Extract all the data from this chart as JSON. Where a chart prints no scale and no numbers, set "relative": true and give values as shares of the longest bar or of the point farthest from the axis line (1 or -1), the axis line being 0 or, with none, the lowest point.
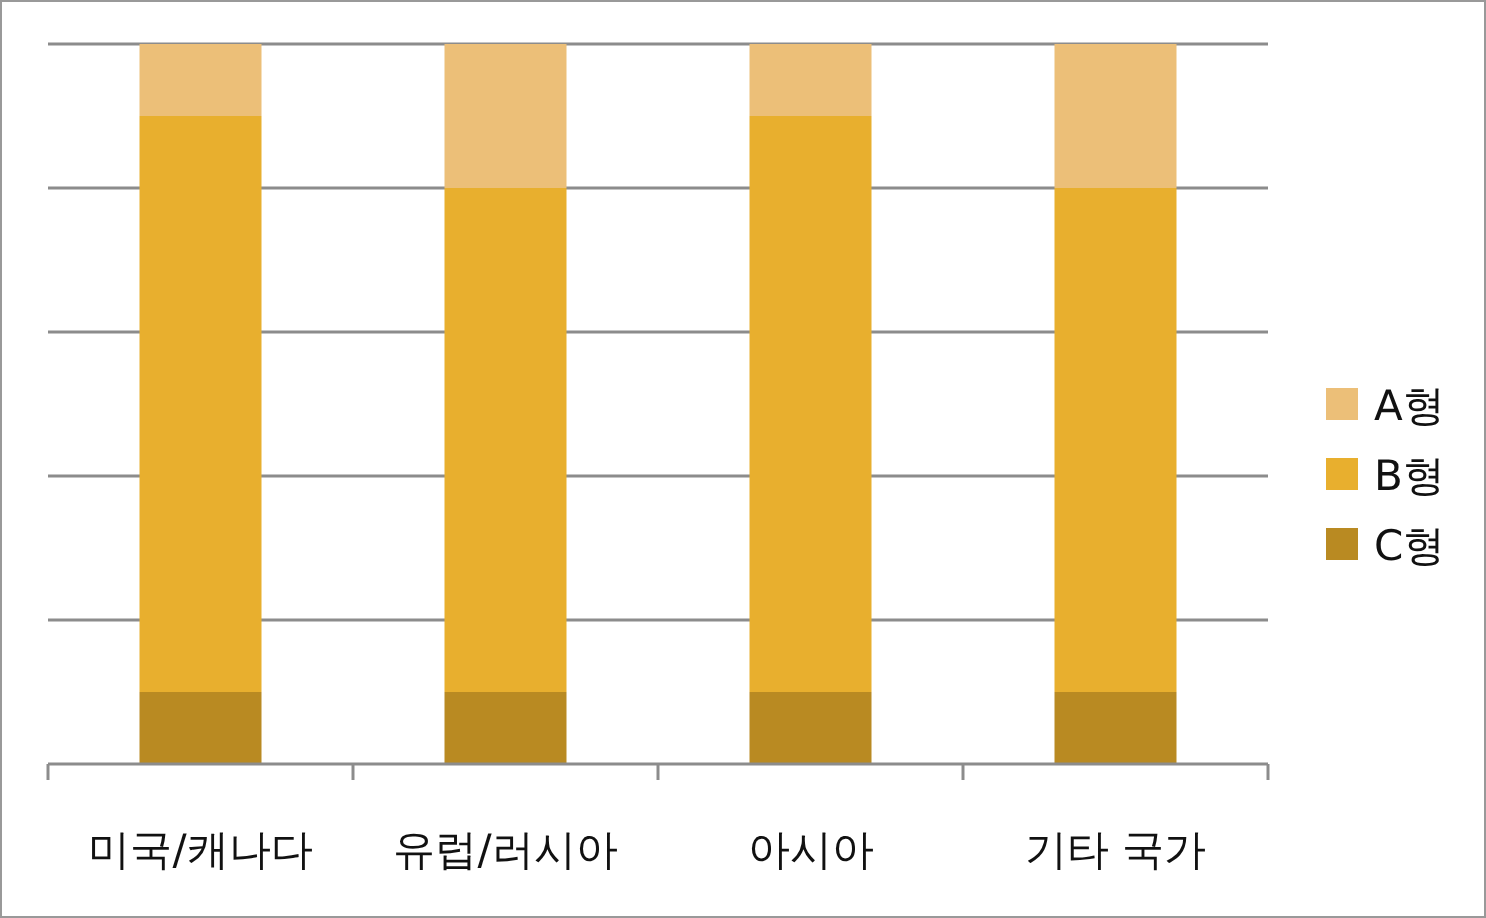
{
  "chart_data": {
    "type": "bar",
    "stacked": true,
    "relative": true,
    "grid": "y",
    "legend": "right",
    "categories": [
      "미국/캐나다",
      "유럽/러시아",
      "아시아",
      "기타 국가"
    ],
    "series": [
      {
        "name": "C형",
        "color": "#b98a22",
        "values": [
          0.1,
          0.1,
          0.1,
          0.1
        ]
      },
      {
        "name": "B형",
        "color": "#e8af2e",
        "values": [
          0.8,
          0.7,
          0.8,
          0.7
        ]
      },
      {
        "name": "A형",
        "color": "#ecbf78",
        "values": [
          0.1,
          0.2,
          0.1,
          0.2
        ]
      }
    ]
  }
}
